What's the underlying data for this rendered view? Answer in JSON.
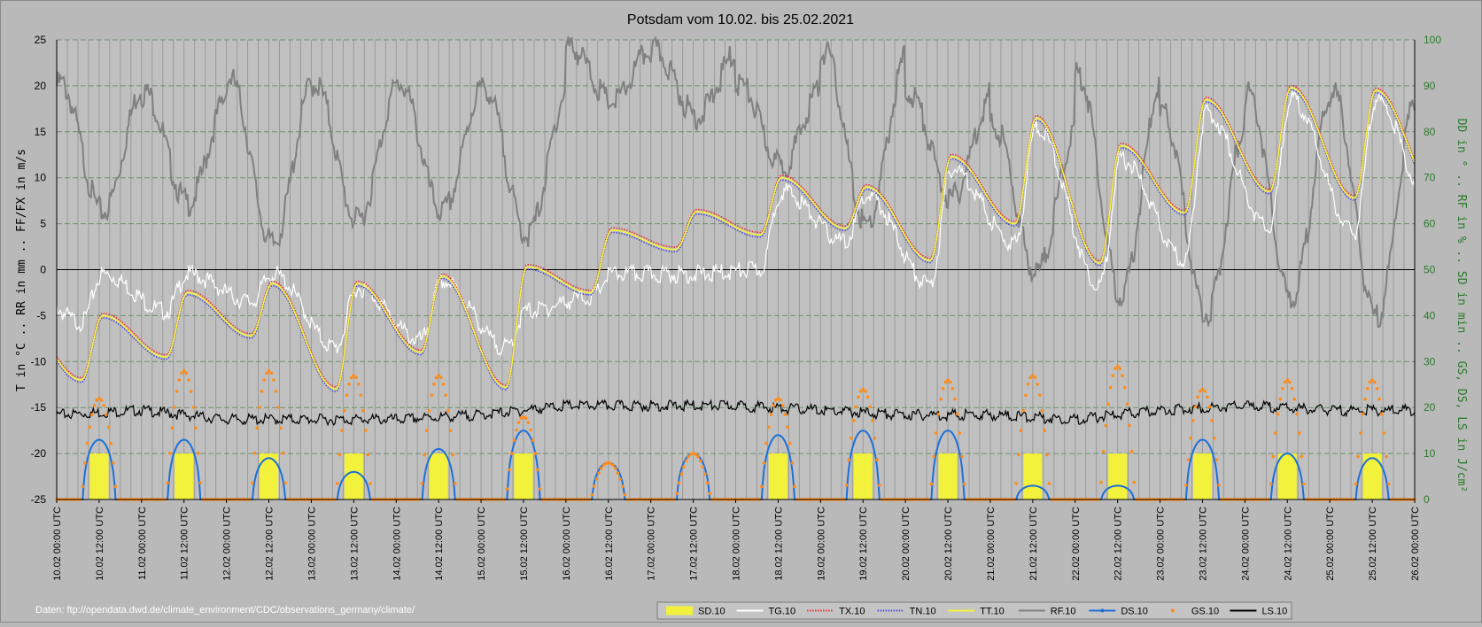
{
  "chart_data": {
    "type": "line",
    "title": "Potsdam vom 10.02. bis 25.02.2021",
    "ylabel_left": "T in °C .. RR in mm .. FF/FX in m/s",
    "ylabel_right": "DD in ° .. RF in % .. SD in min .. GS, DS, LS in J/cm²",
    "ylim_left": [
      -25,
      25
    ],
    "ylim_right": [
      0,
      100
    ],
    "yticks_left": [
      -25,
      -20,
      -15,
      -10,
      -5,
      0,
      5,
      10,
      15,
      20,
      25
    ],
    "yticks_right": [
      0,
      10,
      20,
      30,
      40,
      50,
      60,
      70,
      80,
      90,
      100
    ],
    "x_ticks": [
      "10.02 00:00 UTC",
      "10.02 12:00 UTC",
      "11.02 00:00 UTC",
      "11.02 12:00 UTC",
      "12.02 00:00 UTC",
      "12.02 12:00 UTC",
      "13.02 00:00 UTC",
      "13.02 12:00 UTC",
      "14.02 00:00 UTC",
      "14.02 12:00 UTC",
      "15.02 00:00 UTC",
      "15.02 12:00 UTC",
      "16.02 00:00 UTC",
      "16.02 12:00 UTC",
      "17.02 00:00 UTC",
      "17.02 12:00 UTC",
      "18.02 00:00 UTC",
      "18.02 12:00 UTC",
      "19.02 00:00 UTC",
      "19.02 12:00 UTC",
      "20.02 00:00 UTC",
      "20.02 12:00 UTC",
      "21.02 00:00 UTC",
      "21.02 12:00 UTC",
      "22.02 00:00 UTC",
      "22.02 12:00 UTC",
      "23.02 00:00 UTC",
      "23.02 12:00 UTC",
      "24.02 00:00 UTC",
      "24.02 12:00 UTC",
      "25.02 00:00 UTC",
      "25.02 12:00 UTC",
      "26.02 00:00 UTC"
    ],
    "days": [
      "10.02",
      "11.02",
      "12.02",
      "13.02",
      "14.02",
      "15.02",
      "16.02",
      "17.02",
      "18.02",
      "19.02",
      "20.02",
      "21.02",
      "22.02",
      "23.02",
      "24.02",
      "25.02"
    ],
    "tt_max": [
      -5,
      -2.5,
      -1.5,
      -1.5,
      -0.7,
      0.3,
      4.3,
      6.3,
      10,
      9,
      12.3,
      16.5,
      13.5,
      18.5,
      19.8,
      19.5
    ],
    "tt_min": [
      -12,
      -9.5,
      -7.2,
      -13,
      -9,
      -12.8,
      -2.5,
      2.2,
      3.8,
      4.5,
      1,
      5,
      0.7,
      6.2,
      8.5,
      7.8
    ],
    "tg_max": [
      0,
      0,
      0,
      -1.5,
      -0.8,
      -4,
      0,
      0,
      9,
      8.5,
      11.5,
      16,
      12.5,
      17.5,
      19,
      19
    ],
    "tg_min": [
      -5.2,
      -4,
      -3,
      -8,
      -7.2,
      -8,
      -2.5,
      0,
      0.5,
      3.5,
      -1.2,
      3.3,
      -1.2,
      1.5,
      5,
      4.5
    ],
    "rf_max": [
      92,
      90,
      93,
      92,
      92,
      91,
      100,
      99,
      92,
      99,
      90,
      83,
      94,
      85,
      90,
      90
    ],
    "rf_min": [
      64,
      66,
      57,
      62,
      64,
      59,
      88,
      85,
      74,
      61,
      67,
      51,
      46,
      42,
      45,
      41
    ],
    "gs_peak": [
      22,
      28,
      28,
      27,
      27,
      18,
      8,
      10,
      22,
      24,
      26,
      27,
      29,
      24,
      26,
      26
    ],
    "ds_peak": [
      13,
      13,
      9,
      6,
      11,
      15,
      8,
      10,
      14,
      15,
      15,
      3,
      3,
      13,
      10,
      9
    ],
    "sd_per_day": [
      10,
      10,
      10,
      10,
      10,
      10,
      0,
      0,
      10,
      10,
      10,
      10,
      10,
      10,
      10,
      10
    ],
    "ls_level": [
      19,
      20,
      18,
      18,
      18,
      19,
      21,
      21,
      21,
      20,
      19,
      19,
      18,
      20,
      21,
      20
    ],
    "series": [
      {
        "name": "SD.10",
        "color": "#f2f23c"
      },
      {
        "name": "TG.10",
        "color": "#ffffff"
      },
      {
        "name": "TX.10",
        "color": "#e83030"
      },
      {
        "name": "TN.10",
        "color": "#4a4ad8"
      },
      {
        "name": "TT.10",
        "color": "#f2f23c"
      },
      {
        "name": "RF.10",
        "color": "#808080"
      },
      {
        "name": "DS.10",
        "color": "#1e6fd8"
      },
      {
        "name": "GS.10",
        "color": "#ff8c1a"
      },
      {
        "name": "LS.10",
        "color": "#000000"
      }
    ],
    "grid": true,
    "legend_placement": "bottom-center"
  },
  "footer": {
    "source": "Daten: ftp://opendata.dwd.de/climate_environment/CDC/observations_germany/climate/"
  }
}
